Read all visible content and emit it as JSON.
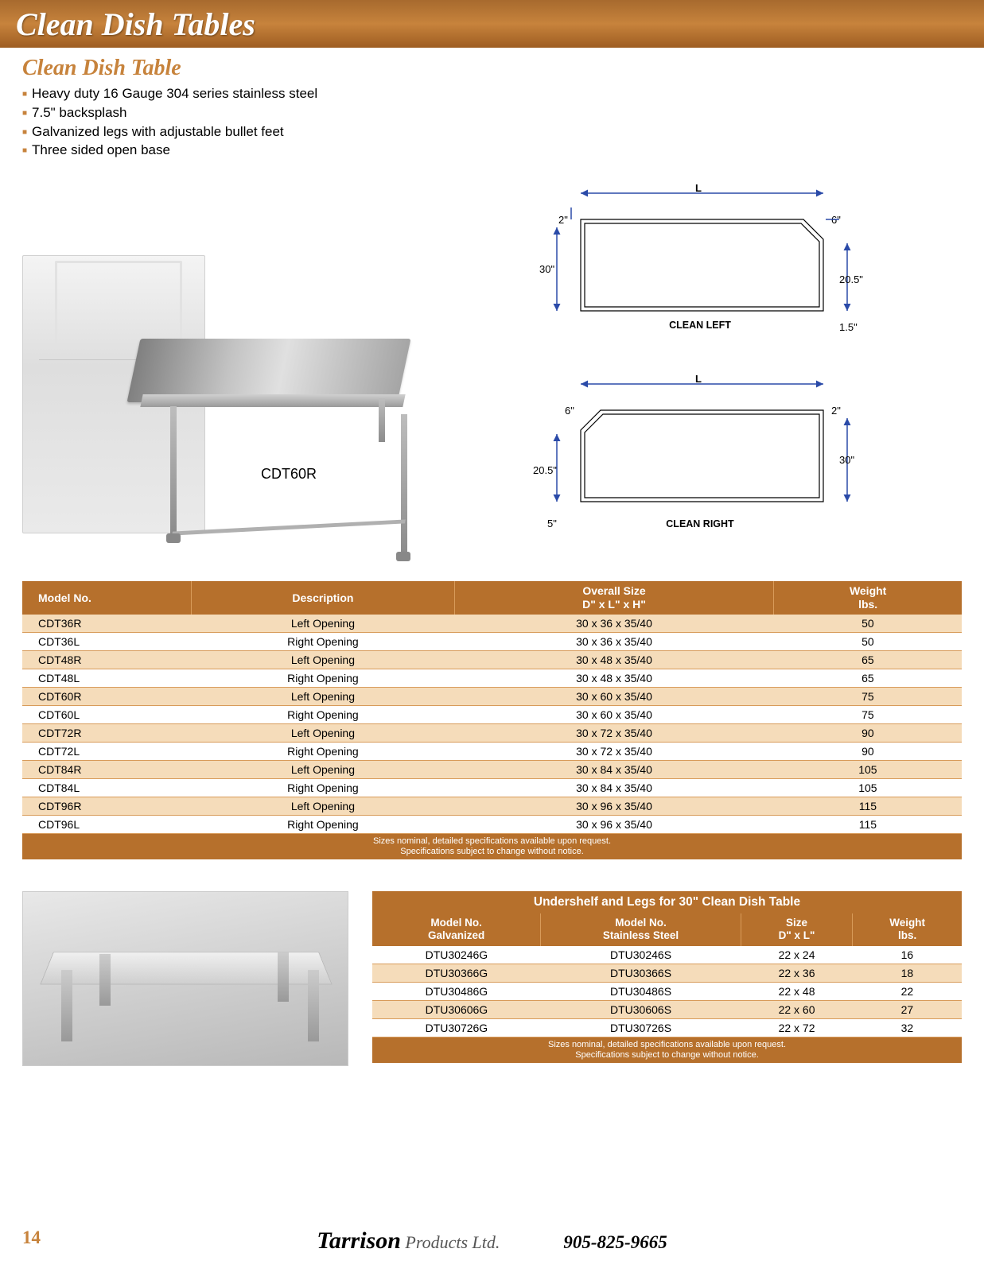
{
  "header": {
    "title": "Clean Dish Tables"
  },
  "subheader": "Clean Dish Table",
  "bullets": [
    "Heavy duty 16 Gauge 304 series stainless steel",
    "7.5\" backsplash",
    "Galvanized legs with adjustable bullet feet",
    "Three sided open base"
  ],
  "photo_model_label": "CDT60R",
  "diagram_left": {
    "label": "CLEAN LEFT",
    "dims": {
      "L": "L",
      "d1": "2\"",
      "d2": "6\"",
      "d3": "30\"",
      "d4": "20.5\"",
      "d5": "1.5\""
    }
  },
  "diagram_right": {
    "label": "CLEAN RIGHT",
    "dims": {
      "L": "L",
      "d1": "6\"",
      "d2": "2\"",
      "d3": "20.5\"",
      "d4": "30\"",
      "d5": "5\""
    }
  },
  "table1": {
    "headers": [
      "Model No.",
      "Description",
      "Overall Size\nD\" x L\" x H\"",
      "Weight\nlbs."
    ],
    "rows": [
      [
        "CDT36R",
        "Left Opening",
        "30 x 36 x 35/40",
        "50"
      ],
      [
        "CDT36L",
        "Right Opening",
        "30 x 36 x 35/40",
        "50"
      ],
      [
        "CDT48R",
        "Left Opening",
        "30 x 48 x 35/40",
        "65"
      ],
      [
        "CDT48L",
        "Right Opening",
        "30 x 48 x 35/40",
        "65"
      ],
      [
        "CDT60R",
        "Left Opening",
        "30 x 60 x 35/40",
        "75"
      ],
      [
        "CDT60L",
        "Right Opening",
        "30 x 60 x 35/40",
        "75"
      ],
      [
        "CDT72R",
        "Left Opening",
        "30 x 72 x 35/40",
        "90"
      ],
      [
        "CDT72L",
        "Right Opening",
        "30 x 72 x 35/40",
        "90"
      ],
      [
        "CDT84R",
        "Left Opening",
        "30 x 84 x 35/40",
        "105"
      ],
      [
        "CDT84L",
        "Right Opening",
        "30 x 84 x 35/40",
        "105"
      ],
      [
        "CDT96R",
        "Left Opening",
        "30 x 96 x 35/40",
        "115"
      ],
      [
        "CDT96L",
        "Right Opening",
        "30 x 96 x 35/40",
        "115"
      ]
    ],
    "footnote1": "Sizes nominal, detailed specifications available upon request.",
    "footnote2": "Specifications subject to change without notice."
  },
  "table2": {
    "title": "Undershelf and Legs for 30\" Clean Dish Table",
    "headers": [
      "Model No.\nGalvanized",
      "Model No.\nStainless Steel",
      "Size\nD\" x L\"",
      "Weight\nlbs."
    ],
    "rows": [
      [
        "DTU30246G",
        "DTU30246S",
        "22 x 24",
        "16"
      ],
      [
        "DTU30366G",
        "DTU30366S",
        "22 x 36",
        "18"
      ],
      [
        "DTU30486G",
        "DTU30486S",
        "22 x 48",
        "22"
      ],
      [
        "DTU30606G",
        "DTU30606S",
        "22 x 60",
        "27"
      ],
      [
        "DTU30726G",
        "DTU30726S",
        "22 x 72",
        "32"
      ]
    ],
    "footnote1": "Sizes nominal, detailed specifications available upon request.",
    "footnote2": "Specifications subject to change without notice."
  },
  "footer": {
    "page": "14",
    "brand": "Tarrison",
    "brand_sub": " Products Ltd.",
    "phone": "905-825-9665"
  },
  "colors": {
    "accent": "#b6702c",
    "accent_light": "#f5dcba",
    "header_orange": "#c7833c",
    "diagram_blue": "#2a4aa8"
  }
}
